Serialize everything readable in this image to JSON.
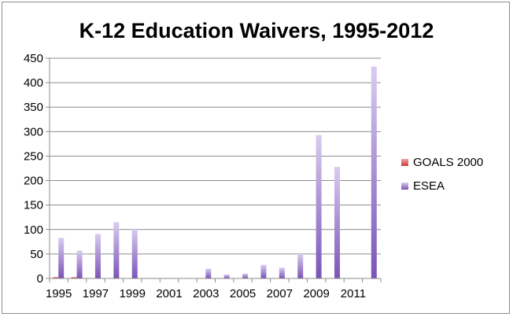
{
  "chart_data": {
    "type": "bar",
    "title": "K-12 Education Waivers, 1995-2012",
    "xlabel": "",
    "ylabel": "",
    "ylim": [
      0,
      450
    ],
    "yticks": [
      0,
      50,
      100,
      150,
      200,
      250,
      300,
      350,
      400,
      450
    ],
    "categories": [
      "1995",
      "1996",
      "1997",
      "1998",
      "1999",
      "2000",
      "2001",
      "2002",
      "2003",
      "2004",
      "2005",
      "2006",
      "2007",
      "2008",
      "2009",
      "2010",
      "2011",
      "2012"
    ],
    "xtick_labels": [
      "1995",
      "1997",
      "1999",
      "2001",
      "2003",
      "2005",
      "2007",
      "2009",
      "2011"
    ],
    "grid": true,
    "legend_position": "right",
    "series": [
      {
        "name": "GOALS 2000",
        "color": "#e05a5a",
        "values": [
          3,
          3,
          0,
          0,
          0,
          0,
          0,
          0,
          0,
          0,
          0,
          0,
          0,
          0,
          0,
          0,
          0,
          0
        ]
      },
      {
        "name": "ESEA",
        "color": "#8c68c4",
        "values": [
          83,
          57,
          91,
          115,
          102,
          0,
          0,
          0,
          20,
          8,
          10,
          28,
          22,
          50,
          293,
          228,
          0,
          433
        ]
      }
    ]
  }
}
